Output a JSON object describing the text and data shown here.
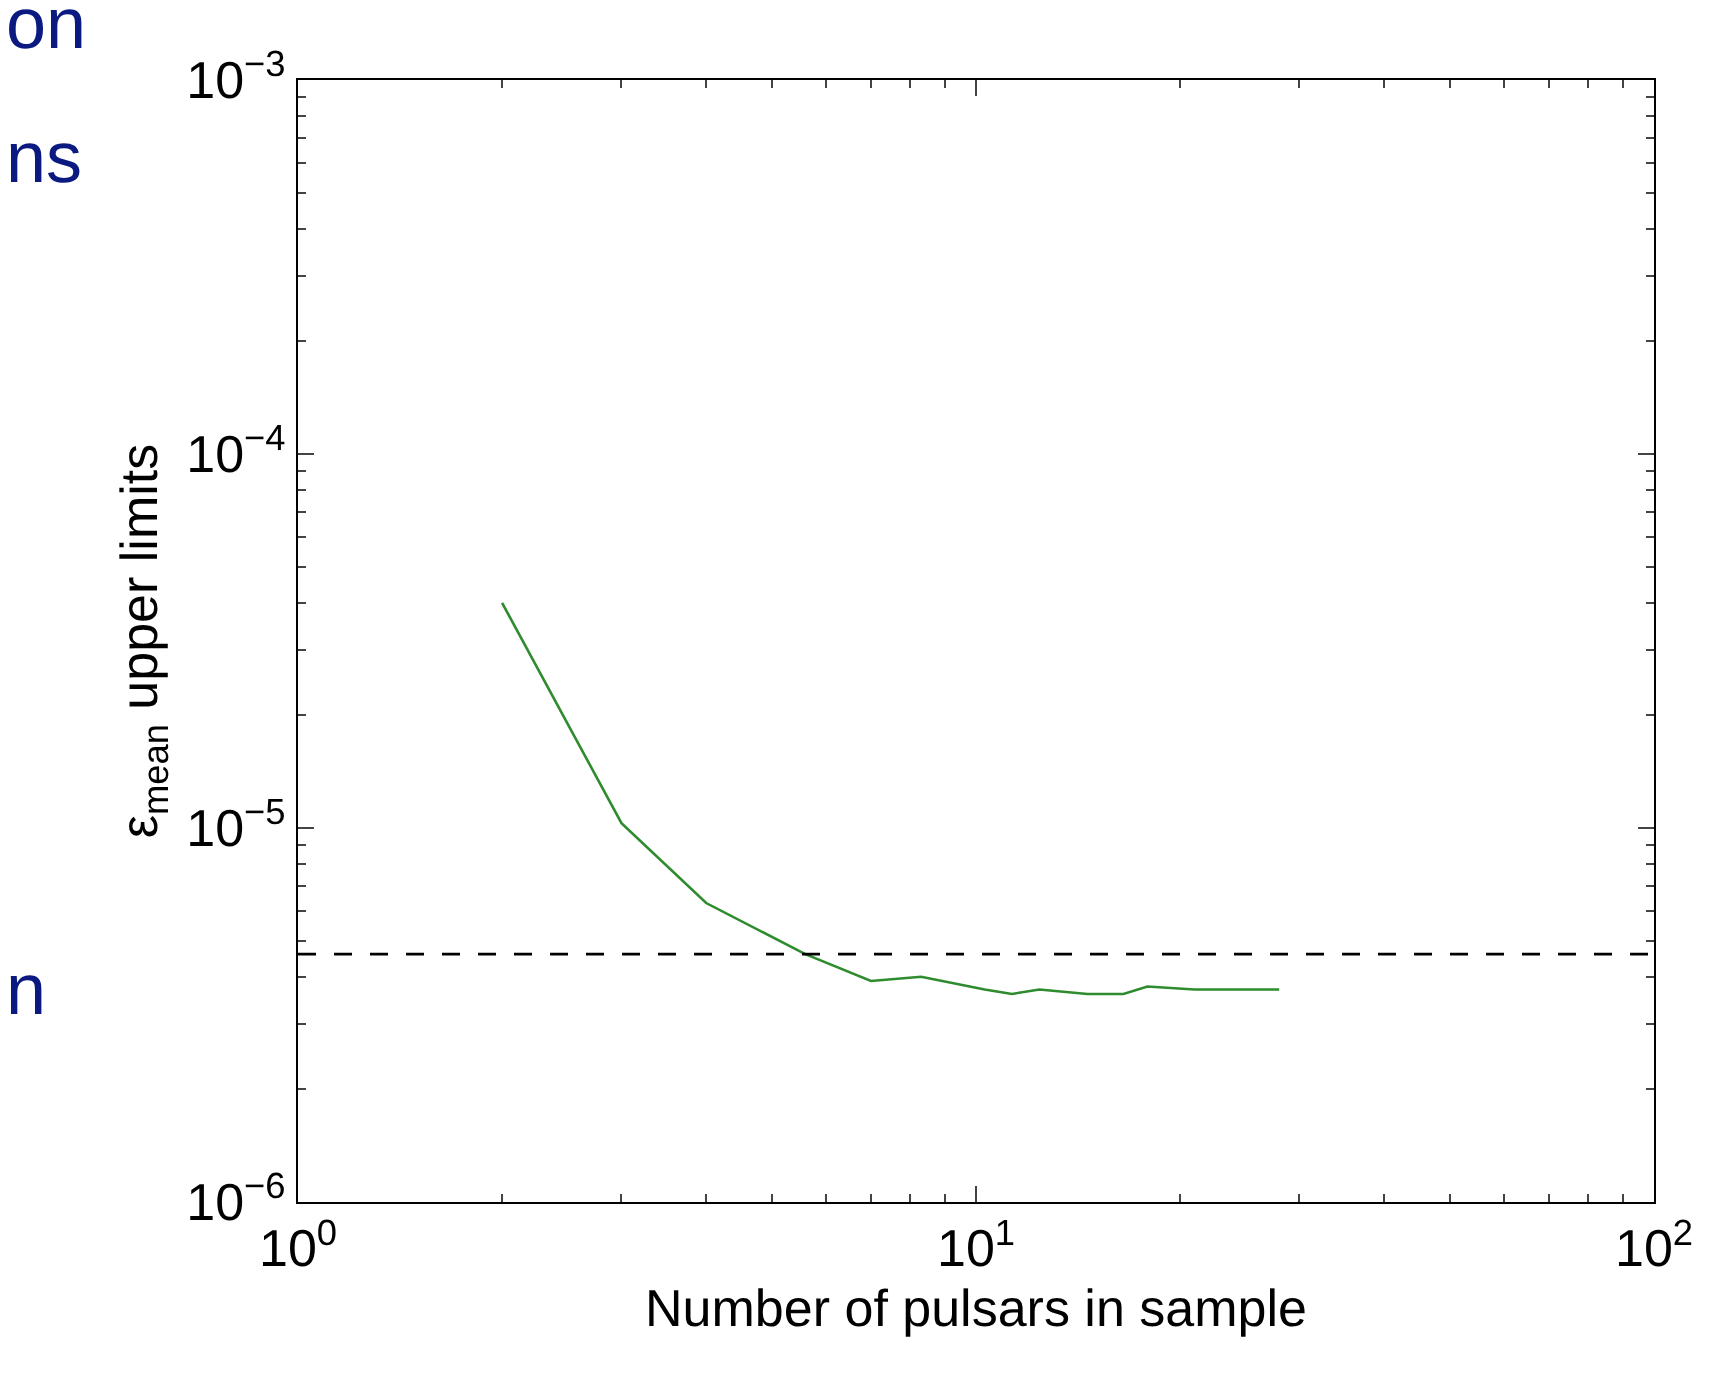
{
  "chart_data": {
    "type": "line",
    "xlabel": "Number of pulsars in sample",
    "ylabel": "ε$_{mean}$ upper limits",
    "log": "xy",
    "line_style": "solid",
    "xlim": [
      1,
      100
    ],
    "xticks": [
      {
        "value": 1,
        "label": "10$^{0}$"
      },
      {
        "value": 10,
        "label": "10$^{1}$"
      },
      {
        "value": 100,
        "label": "10$^{2}$"
      }
    ],
    "ylim": [
      1e-06,
      0.001
    ],
    "yticks": [
      {
        "value": 1e-06,
        "label": "10$^{−6}$"
      },
      {
        "value": 1e-05,
        "label": "10$^{−5}$"
      },
      {
        "value": 0.0001,
        "label": "10$^{−4}$"
      },
      {
        "value": 0.001,
        "label": "10$^{−3}$"
      }
    ],
    "series": [
      {
        "color": "#2e8b2e",
        "x": [
          2,
          3,
          4,
          5.6,
          7,
          8.3,
          10.3,
          11.3,
          12.4,
          14.6,
          16.5,
          17.9,
          21,
          28
        ],
        "values": [
          4e-05,
          1.03e-05,
          6.3e-06,
          4.6e-06,
          3.9e-06,
          4e-06,
          3.7e-06,
          3.6e-06,
          3.7e-06,
          3.6e-06,
          3.6e-06,
          3.77e-06,
          3.7e-06,
          3.7e-06
        ]
      }
    ],
    "ref_lines": [
      {
        "axis": "y",
        "value": 4.6e-06,
        "color": "#000000",
        "line_style": "dashed"
      }
    ],
    "annotations": [
      "on",
      "ns",
      "n"
    ]
  }
}
